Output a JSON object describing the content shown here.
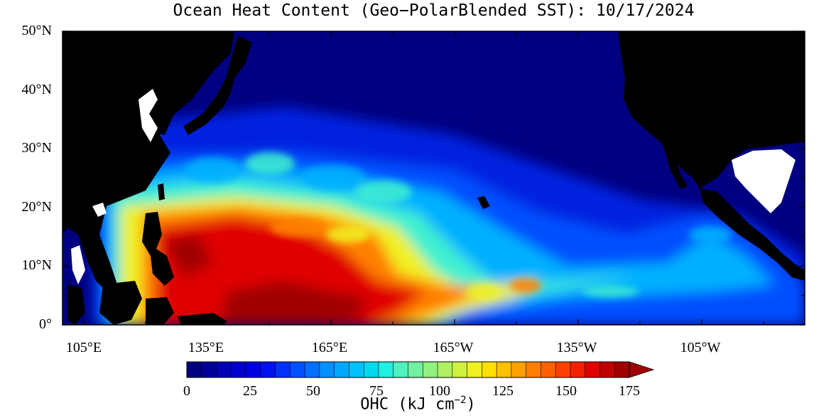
{
  "title": "Ocean Heat Content (Geo−PolarBlended SST): 10/17/2024",
  "lat_labels": [
    "50°N",
    "40°N",
    "30°N",
    "20°N",
    "10°N",
    "0°"
  ],
  "lon_labels": [
    "105°E",
    "135°E",
    "165°E",
    "165°W",
    "135°W",
    "105°W"
  ],
  "colorbar": {
    "label_main": "OHC (kJ cm",
    "label_exp": "−2",
    "label_close": ")",
    "ticks": [
      "0",
      "25",
      "50",
      "75",
      "100",
      "125",
      "150",
      "175"
    ],
    "colors": [
      "#000080",
      "#00009a",
      "#0000b4",
      "#0000cc",
      "#0000e0",
      "#0010f0",
      "#0030ff",
      "#0050ff",
      "#0070ff",
      "#0090ff",
      "#00a8ff",
      "#00c0ff",
      "#00d8f0",
      "#20f0e0",
      "#50f0c0",
      "#70f0a0",
      "#90f080",
      "#b0f060",
      "#d0f040",
      "#f0f020",
      "#ffe000",
      "#ffc000",
      "#ffa000",
      "#ff8000",
      "#ff6000",
      "#ff4000",
      "#f02000",
      "#e00000",
      "#c00000",
      "#a00000"
    ],
    "over_color": "#a00000"
  },
  "map_colors": {
    "land": "#000000",
    "lakes": "#ffffff",
    "deep": "#000080",
    "low": "#0020e0",
    "mid": "#00b0ff",
    "cyan": "#40f0d0",
    "yellow": "#f0f020",
    "orange": "#ff8000",
    "red": "#e00000",
    "darkred": "#a00000"
  }
}
